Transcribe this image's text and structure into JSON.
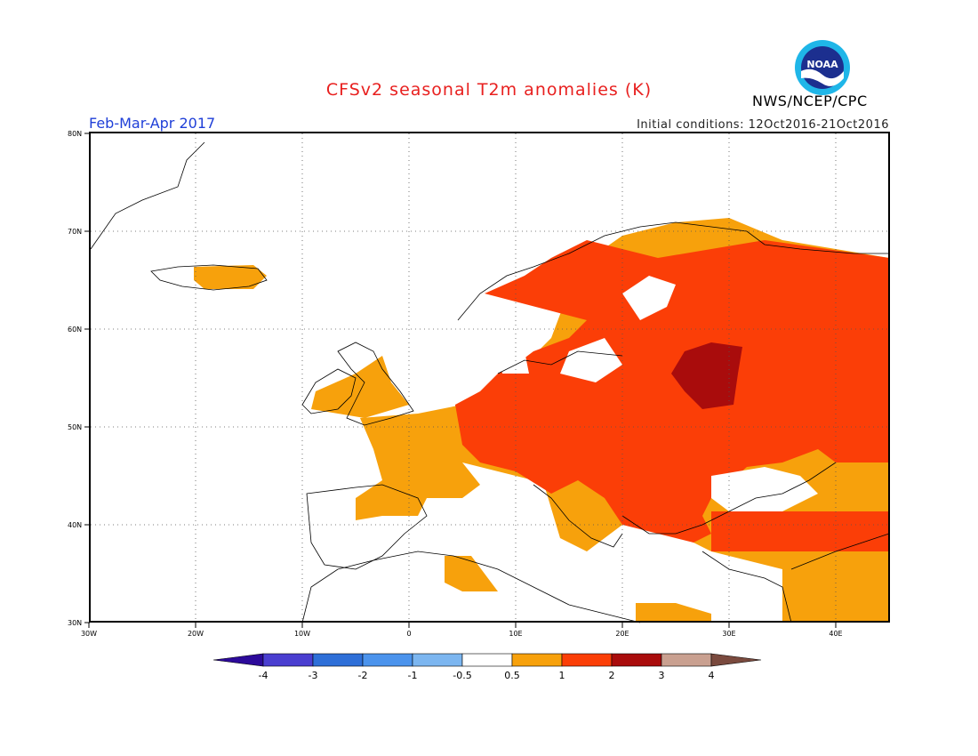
{
  "title": "CFSv2 seasonal T2m anomalies (K)",
  "period": "Feb-Mar-Apr 2017",
  "initial_conditions": "Initial conditions: 12Oct2016-21Oct2016",
  "agency": "NWS/NCEP/CPC",
  "logo_text": "NOAA",
  "map": {
    "lat_labels": [
      "80N",
      "70N",
      "60N",
      "50N",
      "40N",
      "30N"
    ],
    "lon_labels": [
      "30W",
      "20W",
      "10W",
      "0",
      "10E",
      "20E",
      "30E",
      "40E"
    ]
  },
  "colorbar": {
    "bins": [
      {
        "color": "#2c0a9a"
      },
      {
        "color": "#4a3ed0"
      },
      {
        "color": "#2e6fd8"
      },
      {
        "color": "#4b93ec"
      },
      {
        "color": "#7cb6f0"
      },
      {
        "color": "#ffffff"
      },
      {
        "color": "#f7a10c"
      },
      {
        "color": "#fb3e07"
      },
      {
        "color": "#a90c0c"
      },
      {
        "color": "#c9a090"
      },
      {
        "color": "#7a4a3e"
      }
    ],
    "tick_labels": [
      "-4",
      "-3",
      "-2",
      "-1",
      "-0.5",
      "0.5",
      "1",
      "2",
      "3",
      "4"
    ]
  }
}
